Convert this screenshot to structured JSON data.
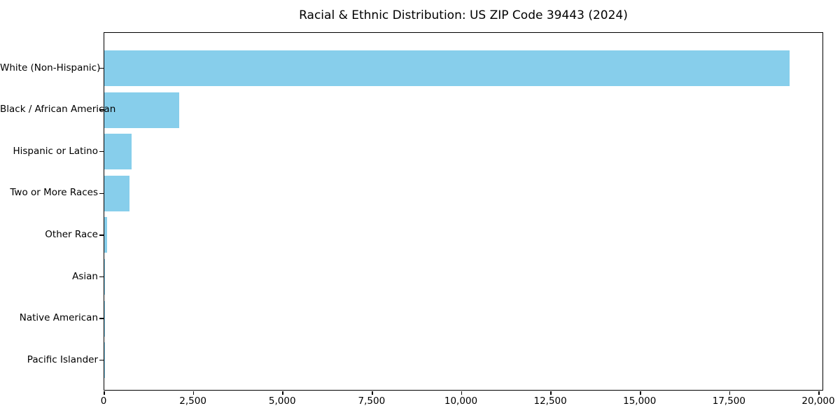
{
  "chart_data": {
    "type": "bar",
    "orientation": "horizontal",
    "title": "Racial & Ethnic Distribution: US ZIP Code 39443 (2024)",
    "categories": [
      "White (Non-Hispanic)",
      "Black / African American",
      "Hispanic or Latino",
      "Two or More Races",
      "Other Race",
      "Asian",
      "Native American",
      "Pacific Islander"
    ],
    "values": [
      19170,
      2090,
      765,
      700,
      72,
      20,
      10,
      4
    ],
    "xlabel": "",
    "ylabel": "",
    "xlim": [
      0,
      20140
    ],
    "x_ticks": [
      0,
      2500,
      5000,
      7500,
      10000,
      12500,
      15000,
      17500,
      20000
    ],
    "x_tick_labels": [
      "0",
      "2,500",
      "5,000",
      "7,500",
      "10,000",
      "12,500",
      "15,000",
      "17,500",
      "20,000"
    ],
    "bar_color": "#87CEEB",
    "spine_color": "#000000",
    "grid": false,
    "legend": null
  }
}
